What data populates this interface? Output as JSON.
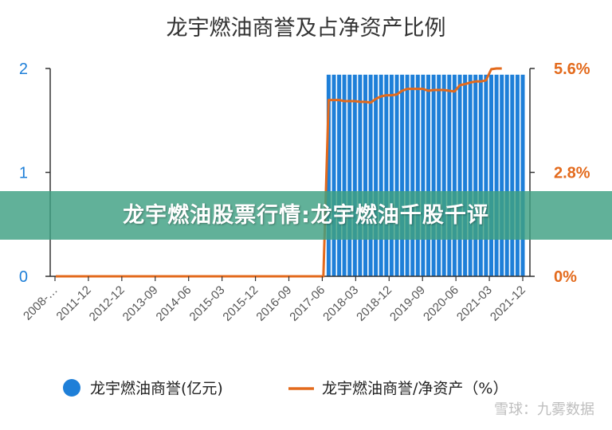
{
  "chart_data": {
    "type": "bar",
    "title": "龙宇燃油商誉及占净资产比例",
    "series": [
      {
        "name": "龙宇燃油商誉(亿元)",
        "axis": "left",
        "kind": "bar",
        "color": "#1e7fd8",
        "values": [
          0,
          0,
          0,
          0,
          0,
          0,
          0,
          0,
          0,
          0,
          0,
          0,
          0,
          0,
          0,
          0,
          0,
          0,
          0,
          0,
          0,
          0,
          0,
          0,
          0,
          0,
          0,
          0,
          0,
          0,
          0,
          0,
          0,
          0,
          0,
          0,
          0,
          0,
          0,
          0,
          0,
          0,
          0,
          0,
          0,
          0,
          0,
          0,
          0,
          0,
          0,
          0,
          1.94,
          1.94,
          1.94,
          1.94,
          1.94,
          1.94,
          1.94,
          1.94,
          1.94,
          1.94,
          1.94,
          1.94,
          1.94,
          1.94,
          1.94,
          1.94,
          1.94,
          1.94,
          1.94,
          1.94,
          1.94,
          1.94,
          1.94,
          1.94,
          1.94,
          1.94,
          1.94,
          1.94,
          1.94,
          1.94,
          1.94,
          1.94,
          1.94,
          1.94,
          1.94,
          1.94,
          1.94,
          1.94
        ]
      },
      {
        "name": "龙宇燃油商誉/净资产（%）",
        "axis": "right",
        "kind": "line",
        "color": "#e36a1c",
        "values": [
          0,
          0,
          0,
          0,
          0,
          0,
          0,
          0,
          0,
          0,
          0,
          0,
          0,
          0,
          0,
          0,
          0,
          0,
          0,
          0,
          0,
          0,
          0,
          0,
          0,
          0,
          0,
          0,
          0,
          0,
          0,
          0,
          0,
          0,
          0,
          0,
          0,
          0,
          0,
          0,
          0,
          0,
          0,
          0,
          0,
          0,
          0,
          0,
          0,
          0,
          0,
          0,
          4.75,
          4.75,
          4.75,
          4.72,
          4.72,
          4.72,
          4.7,
          4.7,
          4.68,
          4.78,
          4.85,
          4.88,
          4.88,
          4.9,
          5.0,
          5.05,
          5.05,
          5.05,
          5.05,
          5.0,
          5.02,
          5.02,
          5.02,
          5.0,
          4.98,
          5.15,
          5.18,
          5.22,
          5.25,
          5.25,
          5.28,
          5.58,
          5.6,
          5.6
        ]
      }
    ],
    "x_tick_labels": [
      "2008-…",
      "2011-12",
      "2012-12",
      "2013-09",
      "2014-06",
      "2015-03",
      "2015-12",
      "2016-09",
      "2017-06",
      "2018-03",
      "2018-12",
      "2019-09",
      "2020-06",
      "2021-03",
      "2021-12"
    ],
    "y_left": {
      "ticks": [
        "0",
        "1",
        "2"
      ],
      "ylim": [
        0,
        2
      ]
    },
    "y_right": {
      "ticks": [
        "0%",
        "2.8%",
        "5.6%"
      ],
      "ylim": [
        0,
        5.6
      ]
    },
    "legend": {
      "position": "bottom",
      "items": [
        "龙宇燃油商誉(亿元)",
        "龙宇燃油商誉/净资产（%）"
      ]
    },
    "grid": false
  },
  "overlay": {
    "banner_text": "龙宇燃油股票行情:龙宇燃油千股千评",
    "watermark": "雪球：九雾数据"
  }
}
